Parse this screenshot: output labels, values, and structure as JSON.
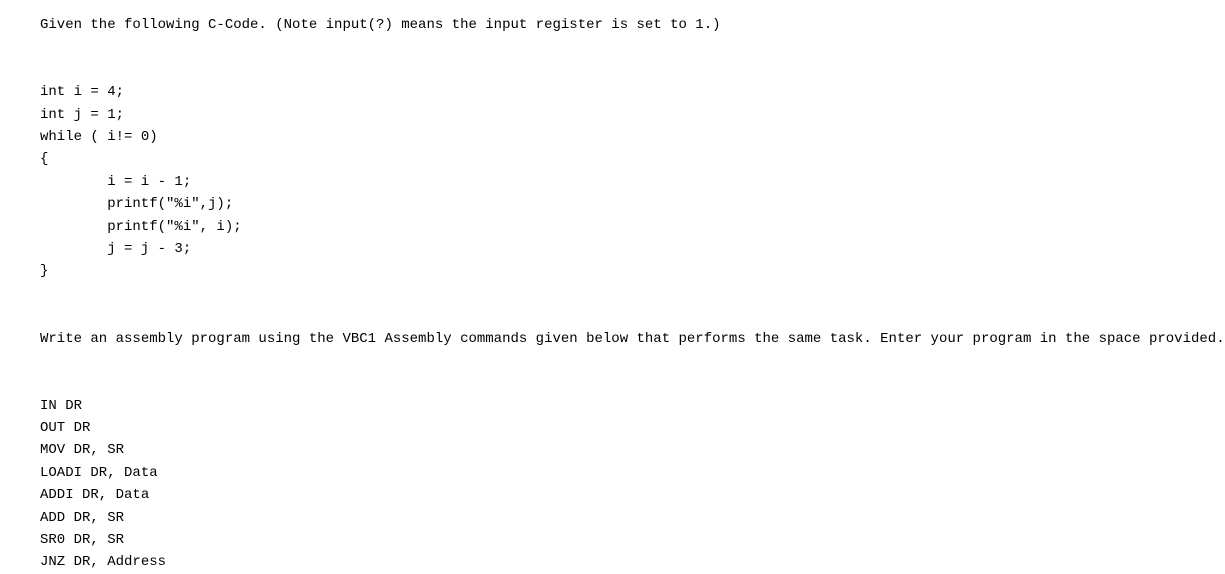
{
  "prompt_line": "Given the following C-Code. (Note input(?) means the input register is set to 1.)",
  "code": {
    "l1": "int i = 4;",
    "l2": "int j = 1;",
    "l3": "while ( i!= 0)",
    "l4": "{",
    "l5": "i = i - 1;",
    "l6": "printf(\"%i\",j);",
    "l7": "printf(\"%i\", i);",
    "l8": "j = j - 3;",
    "l9": "}"
  },
  "task_line": "Write an assembly program using the VBC1 Assembly commands given below that performs the same task. Enter your program in the space provided.",
  "asm": {
    "a1": "IN DR",
    "a2": "OUT DR",
    "a3": "MOV DR, SR",
    "a4": "LOADI DR, Data",
    "a5": "ADDI DR, Data",
    "a6": "ADD DR, SR",
    "a7": "SR0 DR, SR",
    "a8": "JNZ DR, Address"
  }
}
